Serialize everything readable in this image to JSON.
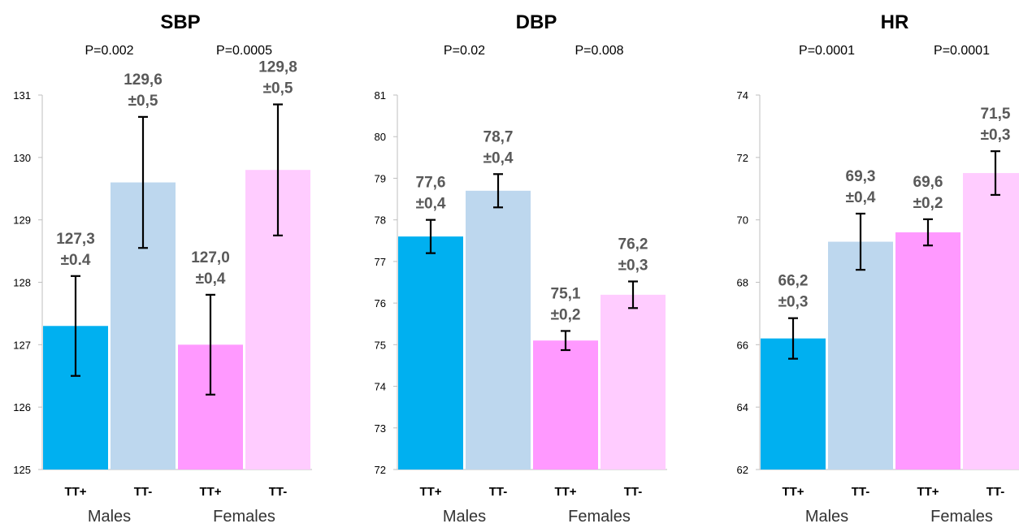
{
  "colors": {
    "males_tt_plus": "#00b0f0",
    "males_tt_minus": "#bdd7ee",
    "females_tt_plus": "#ff99ff",
    "females_tt_minus": "#ffccff"
  },
  "chart_data": [
    {
      "type": "bar",
      "title": "SBP",
      "p_values": [
        "P=0.002",
        "P=0.0005"
      ],
      "categories": [
        "TT+",
        "TT-",
        "TT+",
        "TT-"
      ],
      "groups": [
        "Males",
        "Females"
      ],
      "values": [
        127.3,
        129.6,
        127.0,
        129.8
      ],
      "errors": [
        0.8,
        1.05,
        0.8,
        1.05
      ],
      "data_labels": [
        [
          "127,3",
          "±0.4"
        ],
        [
          "129,6",
          "±0,5"
        ],
        [
          "127,0",
          "±0,4"
        ],
        [
          "129,8",
          "±0,5"
        ]
      ],
      "ylim": [
        125,
        131
      ],
      "yticks": [
        "125",
        "126",
        "127",
        "128",
        "129",
        "130",
        "131"
      ]
    },
    {
      "type": "bar",
      "title": "DBP",
      "p_values": [
        "P=0.02",
        "P=0.008"
      ],
      "categories": [
        "TT+",
        "TT-",
        "TT+",
        "TT-"
      ],
      "groups": [
        "Males",
        "Females"
      ],
      "values": [
        77.6,
        78.7,
        75.1,
        76.2
      ],
      "errors": [
        0.4,
        0.4,
        0.23,
        0.32
      ],
      "data_labels": [
        [
          "77,6",
          "±0,4"
        ],
        [
          "78,7",
          "±0,4"
        ],
        [
          "75,1",
          "±0,2"
        ],
        [
          "76,2",
          "±0,3"
        ]
      ],
      "ylim": [
        72,
        81
      ],
      "yticks": [
        "72",
        "73",
        "74",
        "75",
        "76",
        "77",
        "78",
        "79",
        "80",
        "81"
      ]
    },
    {
      "type": "bar",
      "title": "HR",
      "p_values": [
        "P=0.0001",
        "P=0.0001"
      ],
      "categories": [
        "TT+",
        "TT-",
        "TT+",
        "TT-"
      ],
      "groups": [
        "Males",
        "Females"
      ],
      "values": [
        66.2,
        69.3,
        69.6,
        71.5
      ],
      "errors": [
        0.65,
        0.9,
        0.42,
        0.7
      ],
      "data_labels": [
        [
          "66,2",
          "±0,3"
        ],
        [
          "69,3",
          "±0,4"
        ],
        [
          "69,6",
          "±0,2"
        ],
        [
          "71,5",
          "±0,3"
        ]
      ],
      "ylim": [
        62,
        74
      ],
      "yticks": [
        "62",
        "64",
        "66",
        "68",
        "70",
        "72",
        "74"
      ]
    }
  ]
}
